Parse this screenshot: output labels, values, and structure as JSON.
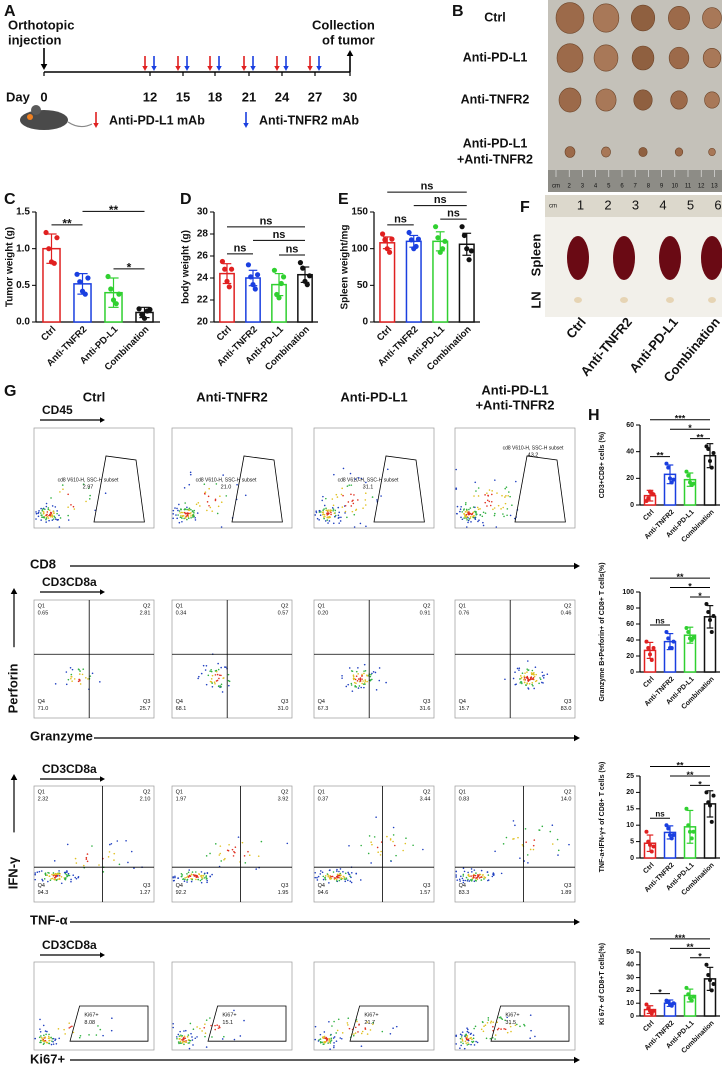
{
  "figure": {
    "panels": [
      "A",
      "B",
      "C",
      "D",
      "E",
      "F",
      "G",
      "H"
    ],
    "timeline": {
      "start_label": [
        "Orthotopic",
        "injection"
      ],
      "day_label": "Day",
      "days": [
        0,
        12,
        15,
        18,
        21,
        24,
        27,
        30
      ],
      "end_label": [
        "Collection",
        "of tumor"
      ],
      "legend": [
        {
          "name": "Anti-PD-L1 mAb",
          "color": "#e02020"
        },
        {
          "name": "Anti-TNFR2 mAb",
          "color": "#1a3fe0"
        }
      ]
    },
    "tumor_photo": {
      "rows": [
        [
          "Ctrl"
        ],
        [
          "Anti-PD-L1"
        ],
        [
          "Anti-TNFR2"
        ],
        [
          "Anti-PD-L1",
          "+Anti-TNFR2"
        ]
      ],
      "ruler": [
        "cm",
        "2",
        "3",
        "4",
        "5",
        "6",
        "7",
        "8",
        "9",
        "10",
        "11",
        "12",
        "13"
      ]
    },
    "spleen_photo": {
      "ruler": [
        "cm",
        "1",
        "2",
        "3",
        "4",
        "5",
        "6"
      ],
      "rows": [
        "Spleen",
        "LN"
      ],
      "groups": [
        "Ctrl",
        "Anti-TNFR2",
        "Anti-PD-L1",
        "Combination"
      ]
    },
    "flow": {
      "columns": [
        [
          "Ctrl"
        ],
        [
          "Anti-TNFR2"
        ],
        [
          "Anti-PD-L1"
        ],
        [
          "Anti-PD-L1",
          "+Anti-TNFR2"
        ]
      ],
      "rows": [
        {
          "kind": "gate",
          "header": "CD45",
          "x_label": "CD8",
          "plots": [
            {
              "gate_name": "cd8 V610-H, SSC-H subset",
              "value": "2.97"
            },
            {
              "gate_name": "cd8 V610-H, SSC-H subset",
              "value": "21.0"
            },
            {
              "gate_name": "cd8 V610-H, SSC-H subset",
              "value": "31.1"
            },
            {
              "gate_name": "cd8 V610-H, SSC-H subset",
              "value": "43.2"
            }
          ]
        },
        {
          "kind": "quadrant",
          "header": "CD3CD8a",
          "x_label": "Granzyme",
          "y_label": "Perforin",
          "plots": [
            [
              {
                "name": "Q1",
                "value": "0.65"
              },
              {
                "name": "Q2",
                "value": "2.81"
              },
              {
                "name": "Q3",
                "value": "25.7"
              },
              {
                "name": "Q4",
                "value": "71.0"
              }
            ],
            [
              {
                "name": "Q1",
                "value": "0.34"
              },
              {
                "name": "Q2",
                "value": "0.57"
              },
              {
                "name": "Q3",
                "value": "31.0"
              },
              {
                "name": "Q4",
                "value": "68.1"
              }
            ],
            [
              {
                "name": "Q1",
                "value": "0.20"
              },
              {
                "name": "Q2",
                "value": "0.91"
              },
              {
                "name": "Q3",
                "value": "31.6"
              },
              {
                "name": "Q4",
                "value": "67.3"
              }
            ],
            [
              {
                "name": "Q1",
                "value": "0.76"
              },
              {
                "name": "Q2",
                "value": "0.46"
              },
              {
                "name": "Q3",
                "value": "83.0"
              },
              {
                "name": "Q4",
                "value": "15.7"
              }
            ]
          ]
        },
        {
          "kind": "quadrant",
          "header": "CD3CD8a",
          "x_label": "TNF-α",
          "y_label": "IFN-γ",
          "plots": [
            [
              {
                "name": "Q1",
                "value": "2.32"
              },
              {
                "name": "Q2",
                "value": "2.10"
              },
              {
                "name": "Q3",
                "value": "1.27"
              },
              {
                "name": "Q4",
                "value": "94.3"
              }
            ],
            [
              {
                "name": "Q1",
                "value": "1.97"
              },
              {
                "name": "Q2",
                "value": "3.92"
              },
              {
                "name": "Q3",
                "value": "1.95"
              },
              {
                "name": "Q4",
                "value": "92.2"
              }
            ],
            [
              {
                "name": "Q1",
                "value": "0.37"
              },
              {
                "name": "Q2",
                "value": "3.44"
              },
              {
                "name": "Q3",
                "value": "1.57"
              },
              {
                "name": "Q4",
                "value": "94.6"
              }
            ],
            [
              {
                "name": "Q1",
                "value": "0.83"
              },
              {
                "name": "Q2",
                "value": "14.0"
              },
              {
                "name": "Q3",
                "value": "1.89"
              },
              {
                "name": "Q4",
                "value": "83.3"
              }
            ]
          ]
        },
        {
          "kind": "gate",
          "header": "CD3CD8a",
          "x_label": "Ki67+",
          "plots": [
            {
              "gate_name": "Ki67+",
              "value": "8.08"
            },
            {
              "gate_name": "Ki67+",
              "value": "15.1"
            },
            {
              "gate_name": "Ki67+",
              "value": "21.7"
            },
            {
              "gate_name": "Ki67+",
              "value": "31.5"
            }
          ]
        }
      ]
    }
  },
  "chart_data": [
    {
      "type": "bar",
      "ylabel": "Tumor weight (g)",
      "categories": [
        "Ctrl",
        "Anti-TNFR2",
        "Anti-PD-L1",
        "Combination"
      ],
      "colors": [
        "#e02020",
        "#1a3fe0",
        "#30d030",
        "#111111"
      ],
      "values": [
        1.0,
        0.52,
        0.4,
        0.13
      ],
      "errors": [
        0.2,
        0.14,
        0.2,
        0.07
      ],
      "points": [
        [
          1.22,
          1.0,
          0.82,
          0.8,
          1.15
        ],
        [
          0.65,
          0.55,
          0.42,
          0.38,
          0.6
        ],
        [
          0.62,
          0.45,
          0.3,
          0.25,
          0.38
        ],
        [
          0.18,
          0.1,
          0.05,
          0.15,
          0.17
        ]
      ],
      "ylim": [
        0,
        1.5
      ],
      "yticks": [
        {
          "value": 0,
          "label": "0.0"
        },
        {
          "value": 0.5,
          "label": "0.5"
        },
        {
          "value": 1,
          "label": "1.0"
        },
        {
          "value": 1.5,
          "label": "1.5"
        }
      ],
      "significance": [
        {
          "between": [
            0,
            1
          ],
          "label": "**"
        },
        {
          "between": [
            1,
            3
          ],
          "label": "**"
        },
        {
          "between": [
            2,
            3
          ],
          "label": "*"
        }
      ]
    },
    {
      "type": "bar",
      "ylabel": "body weight (g)",
      "categories": [
        "Ctrl",
        "Anti-TNFR2",
        "Anti-PD-L1",
        "Combination"
      ],
      "colors": [
        "#e02020",
        "#1a3fe0",
        "#30d030",
        "#111111"
      ],
      "values": [
        24.4,
        24.0,
        23.4,
        24.3
      ],
      "errors": [
        0.9,
        0.7,
        1.0,
        0.7
      ],
      "points": [
        [
          25.5,
          24.8,
          23.7,
          23.2,
          24.8
        ],
        [
          25.2,
          24.1,
          23.4,
          23.0,
          24.3
        ],
        [
          24.7,
          22.5,
          22.2,
          23.5,
          24.1
        ],
        [
          25.4,
          24.9,
          23.7,
          23.4,
          24.2
        ]
      ],
      "ylim": [
        20,
        30
      ],
      "yticks": [
        20,
        22,
        24,
        26,
        28,
        30
      ],
      "significance": [
        {
          "between": [
            0,
            1
          ],
          "label": "ns"
        },
        {
          "between": [
            2,
            3
          ],
          "label": "ns"
        },
        {
          "between": [
            1,
            3
          ],
          "label": "ns"
        },
        {
          "between": [
            0,
            3
          ],
          "label": "ns"
        }
      ]
    },
    {
      "type": "bar",
      "ylabel": "Spleen weight/mg",
      "categories": [
        "Ctrl",
        "Anti-TNFR2",
        "Anti-PD-L1",
        "Combination"
      ],
      "colors": [
        "#e02020",
        "#1a3fe0",
        "#30d030",
        "#111111"
      ],
      "values": [
        108,
        110,
        110,
        106
      ],
      "errors": [
        8,
        8,
        13,
        15
      ],
      "points": [
        [
          120,
          112,
          100,
          95,
          113
        ],
        [
          122,
          112,
          100,
          103,
          113
        ],
        [
          130,
          115,
          95,
          100,
          110
        ],
        [
          130,
          118,
          100,
          85,
          97
        ]
      ],
      "ylim": [
        0,
        150
      ],
      "yticks": [
        0,
        50,
        100,
        150
      ],
      "significance": [
        {
          "between": [
            0,
            1
          ],
          "label": "ns"
        },
        {
          "between": [
            2,
            3
          ],
          "label": "ns"
        },
        {
          "between": [
            1,
            3
          ],
          "label": "ns"
        },
        {
          "between": [
            0,
            3
          ],
          "label": "ns"
        }
      ]
    },
    {
      "type": "bar",
      "ylabel": "CD3+CD8+ cells (%)",
      "categories": [
        "Ctrl",
        "Anti-TNFR2",
        "Anti-PD-L1",
        "Combination"
      ],
      "colors": [
        "#e02020",
        "#1a3fe0",
        "#30d030",
        "#111111"
      ],
      "values": [
        7,
        23,
        19,
        37
      ],
      "errors": [
        4,
        7,
        5,
        9
      ],
      "points": [
        [
          3,
          5,
          10,
          9,
          8
        ],
        [
          31,
          28,
          20,
          17,
          19
        ],
        [
          25,
          22,
          17,
          15,
          16
        ],
        [
          44,
          42,
          33,
          28,
          39
        ]
      ],
      "ylim": [
        0,
        60
      ],
      "yticks": [
        0,
        20,
        40,
        60
      ],
      "significance": [
        {
          "between": [
            0,
            1
          ],
          "label": "**"
        },
        {
          "between": [
            2,
            3
          ],
          "label": "**"
        },
        {
          "between": [
            1,
            3
          ],
          "label": "*"
        },
        {
          "between": [
            0,
            3
          ],
          "label": "***"
        }
      ]
    },
    {
      "type": "bar",
      "ylabel": "Granzyme B+Perforin+ of CD8+ T cells(%)",
      "categories": [
        "Ctrl",
        "Anti-TNFR2",
        "Anti-PD-L1",
        "Combination"
      ],
      "colors": [
        "#e02020",
        "#1a3fe0",
        "#30d030",
        "#111111"
      ],
      "values": [
        27,
        38,
        46,
        69
      ],
      "errors": [
        10,
        10,
        10,
        14
      ],
      "points": [
        [
          38,
          30,
          22,
          15,
          30
        ],
        [
          50,
          42,
          30,
          30,
          38
        ],
        [
          55,
          50,
          42,
          40,
          43
        ],
        [
          85,
          75,
          65,
          50,
          70
        ]
      ],
      "ylim": [
        0,
        100
      ],
      "yticks": [
        0,
        20,
        40,
        60,
        80,
        100
      ],
      "significance": [
        {
          "between": [
            0,
            1
          ],
          "label": "ns"
        },
        {
          "between": [
            2,
            3
          ],
          "label": "*"
        },
        {
          "between": [
            1,
            3
          ],
          "label": "*"
        },
        {
          "between": [
            0,
            3
          ],
          "label": "**"
        }
      ]
    },
    {
      "type": "bar",
      "ylabel": "TNF-a+IFN-γ+ of CD8+ T cells (%)",
      "categories": [
        "Ctrl",
        "Anti-TNFR2",
        "Anti-PD-L1",
        "Combination"
      ],
      "colors": [
        "#e02020",
        "#1a3fe0",
        "#30d030",
        "#111111"
      ],
      "values": [
        4.5,
        7.8,
        9.5,
        16.5
      ],
      "errors": [
        2.5,
        2,
        5,
        4
      ],
      "points": [
        [
          8,
          5,
          4,
          2,
          3.5
        ],
        [
          10,
          9,
          7,
          6,
          7
        ],
        [
          15,
          10,
          8,
          6,
          8
        ],
        [
          20,
          17,
          16,
          11,
          19
        ]
      ],
      "ylim": [
        0,
        25
      ],
      "yticks": [
        0,
        5,
        10,
        15,
        20,
        25
      ],
      "significance": [
        {
          "between": [
            0,
            1
          ],
          "label": "ns"
        },
        {
          "between": [
            2,
            3
          ],
          "label": "*"
        },
        {
          "between": [
            1,
            3
          ],
          "label": "**"
        },
        {
          "between": [
            0,
            3
          ],
          "label": "**"
        }
      ]
    },
    {
      "type": "bar",
      "ylabel": "Ki 67+ of CD8+T cells(%)",
      "categories": [
        "Ctrl",
        "Anti-TNFR2",
        "Anti-PD-L1",
        "Combination"
      ],
      "colors": [
        "#e02020",
        "#1a3fe0",
        "#30d030",
        "#111111"
      ],
      "values": [
        5,
        10,
        16,
        29
      ],
      "errors": [
        3,
        2.5,
        5,
        9
      ],
      "points": [
        [
          9,
          6,
          4,
          2,
          4
        ],
        [
          12,
          11,
          9,
          8,
          10
        ],
        [
          22,
          17,
          14,
          12,
          15
        ],
        [
          40,
          32,
          28,
          20,
          25
        ]
      ],
      "ylim": [
        0,
        50
      ],
      "yticks": [
        0,
        10,
        20,
        30,
        40,
        50
      ],
      "significance": [
        {
          "between": [
            0,
            1
          ],
          "label": "*"
        },
        {
          "between": [
            2,
            3
          ],
          "label": "*"
        },
        {
          "between": [
            1,
            3
          ],
          "label": "**"
        },
        {
          "between": [
            0,
            3
          ],
          "label": "***"
        }
      ]
    }
  ]
}
